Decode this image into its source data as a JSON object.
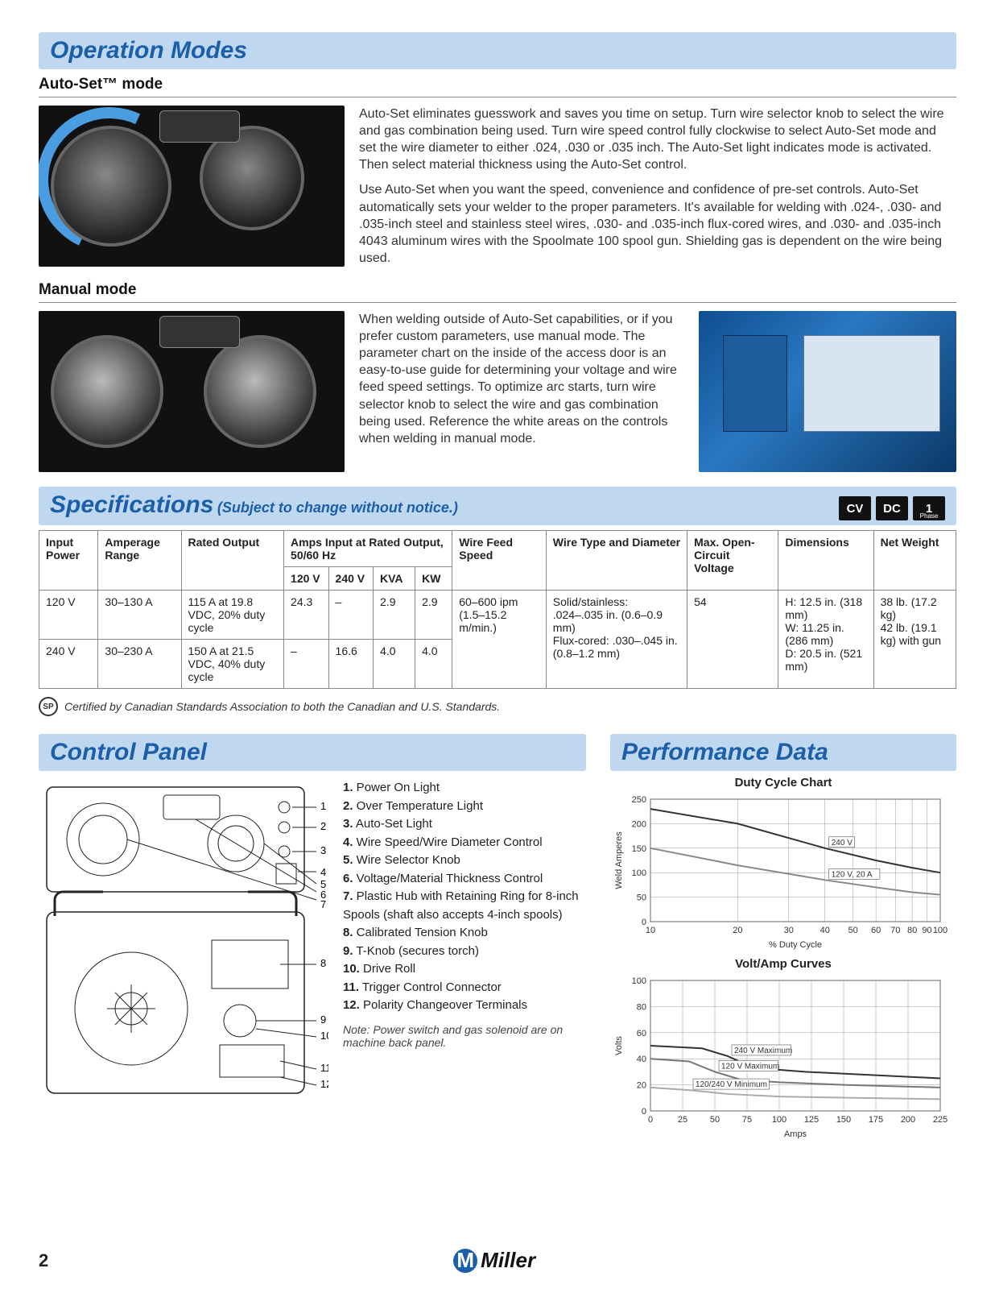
{
  "sections": {
    "operation_modes": "Operation Modes",
    "auto_set_heading": "Auto-Set™ mode",
    "auto_set_p1": "Auto-Set eliminates guesswork and saves you time on setup. Turn wire selector knob to select the wire and gas combination being used. Turn wire speed control fully clockwise to select Auto-Set mode and set the wire diameter to either .024, .030 or .035 inch. The Auto-Set light indicates mode is activated. Then select material thickness using the Auto-Set control.",
    "auto_set_p2": "Use Auto-Set when you want the speed, convenience and confidence of pre-set controls. Auto-Set automatically sets your welder to the proper parameters. It's available for welding with .024-, .030- and .035-inch steel and stainless steel wires, .030- and .035-inch flux-cored wires, and .030- and .035-inch 4043 aluminum wires with the Spoolmate 100 spool gun. Shielding gas is dependent on the wire being used.",
    "manual_heading": "Manual mode",
    "manual_p1": "When welding outside of Auto-Set capabilities, or if you prefer custom parameters, use manual mode. The parameter chart on the inside of the access door is an easy-to-use guide for determining your voltage and wire feed speed settings. To optimize arc starts, turn wire selector knob to select the wire and gas combination being used. Reference the white areas on the controls when welding in manual mode.",
    "specifications": "Specifications",
    "spec_subject": "(Subject to change without notice.)",
    "control_panel": "Control Panel",
    "performance_data": "Performance Data"
  },
  "badges": [
    "CV",
    "DC",
    "1"
  ],
  "badge_phase": "Phase",
  "spec_table": {
    "headers": {
      "input_power": "Input Power",
      "amperage_range": "Amperage Range",
      "rated_output": "Rated Output",
      "amps_input": "Amps Input at Rated Output, 50/60 Hz",
      "c120v": "120 V",
      "c240v": "240 V",
      "kva": "KVA",
      "kw": "KW",
      "wfs": "Wire Feed Speed",
      "wire_type": "Wire Type and Diameter",
      "ocv": "Max. Open-Circuit Voltage",
      "dimensions": "Dimensions",
      "net_weight": "Net Weight"
    },
    "rows": [
      {
        "input_power": "120 V",
        "amperage_range": "30–130 A",
        "rated_output": "115 A at 19.8 VDC, 20% duty cycle",
        "c120v": "24.3",
        "c240v": "–",
        "kva": "2.9",
        "kw": "2.9"
      },
      {
        "input_power": "240 V",
        "amperage_range": "30–230 A",
        "rated_output": "150 A at 21.5 VDC, 40% duty cycle",
        "c120v": "–",
        "c240v": "16.6",
        "kva": "4.0",
        "kw": "4.0"
      }
    ],
    "wfs": "60–600 ipm (1.5–15.2 m/min.)",
    "wire_type": "Solid/stainless: .024–.035 in. (0.6–0.9 mm)\nFlux-cored: .030–.045 in. (0.8–1.2 mm)",
    "ocv": "54",
    "dimensions": "H: 12.5 in. (318 mm)\nW: 11.25 in. (286 mm)\nD: 20.5 in. (521 mm)",
    "net_weight": "38 lb. (17.2 kg)\n42 lb. (19.1 kg) with gun"
  },
  "cert_text": "Certified by Canadian Standards Association to both the Canadian and U.S. Standards.",
  "control_panel_items": [
    "Power On Light",
    "Over Temperature Light",
    "Auto-Set Light",
    "Wire Speed/Wire Diameter Control",
    "Wire Selector Knob",
    "Voltage/Material Thickness Control",
    "Plastic Hub with Retaining Ring for 8-inch Spools (shaft also accepts 4-inch spools)",
    "Calibrated Tension Knob",
    "T-Knob (secures torch)",
    "Drive Roll",
    "Trigger Control Connector",
    "Polarity Changeover Terminals"
  ],
  "control_panel_note": "Note: Power switch and gas solenoid are on machine back panel.",
  "duty_cycle_chart": {
    "title": "Duty Cycle Chart",
    "ylabel": "Weld Amperes",
    "xlabel": "% Duty Cycle",
    "y_ticks": [
      0,
      50,
      100,
      150,
      200,
      250
    ],
    "ylim": [
      0,
      250
    ],
    "x_ticks": [
      10,
      20,
      30,
      40,
      50,
      60,
      70,
      80,
      90,
      100
    ],
    "xlim": [
      10,
      100
    ],
    "x_scale": "log",
    "series": [
      {
        "label": "240 V",
        "color": "#333333",
        "points": [
          [
            10,
            230
          ],
          [
            20,
            200
          ],
          [
            40,
            150
          ],
          [
            60,
            125
          ],
          [
            80,
            110
          ],
          [
            100,
            100
          ]
        ]
      },
      {
        "label": "120 V, 20 A",
        "color": "#888888",
        "points": [
          [
            10,
            150
          ],
          [
            20,
            115
          ],
          [
            40,
            85
          ],
          [
            60,
            70
          ],
          [
            80,
            60
          ],
          [
            100,
            55
          ]
        ]
      }
    ],
    "grid_color": "#999999",
    "background_color": "#ffffff",
    "font_size": 11
  },
  "volt_amp_chart": {
    "title": "Volt/Amp Curves",
    "ylabel": "Volts",
    "xlabel": "Amps",
    "y_ticks": [
      0,
      20,
      40,
      60,
      80,
      100
    ],
    "ylim": [
      0,
      100
    ],
    "x_ticks": [
      0,
      25,
      50,
      75,
      100,
      125,
      150,
      175,
      200,
      225
    ],
    "xlim": [
      0,
      225
    ],
    "series": [
      {
        "label": "240 V Maximum",
        "color": "#333333",
        "points": [
          [
            0,
            50
          ],
          [
            40,
            48
          ],
          [
            60,
            42
          ],
          [
            80,
            33
          ],
          [
            120,
            30
          ],
          [
            225,
            25
          ]
        ]
      },
      {
        "label": "120 V Maximum",
        "color": "#777777",
        "points": [
          [
            0,
            40
          ],
          [
            30,
            38
          ],
          [
            50,
            30
          ],
          [
            70,
            24
          ],
          [
            100,
            22
          ],
          [
            150,
            20
          ],
          [
            225,
            18
          ]
        ]
      },
      {
        "label": "120/240 V Minimum",
        "color": "#aaaaaa",
        "points": [
          [
            0,
            18
          ],
          [
            30,
            16
          ],
          [
            60,
            13
          ],
          [
            100,
            11
          ],
          [
            225,
            9
          ]
        ]
      }
    ],
    "grid_color": "#999999",
    "background_color": "#ffffff",
    "font_size": 11
  },
  "footer": {
    "page": "2",
    "brand": "Miller"
  },
  "colors": {
    "heading_blue": "#1b5faa",
    "bar_bg": "#c0d8ef",
    "text": "#333333",
    "border": "#888888"
  }
}
